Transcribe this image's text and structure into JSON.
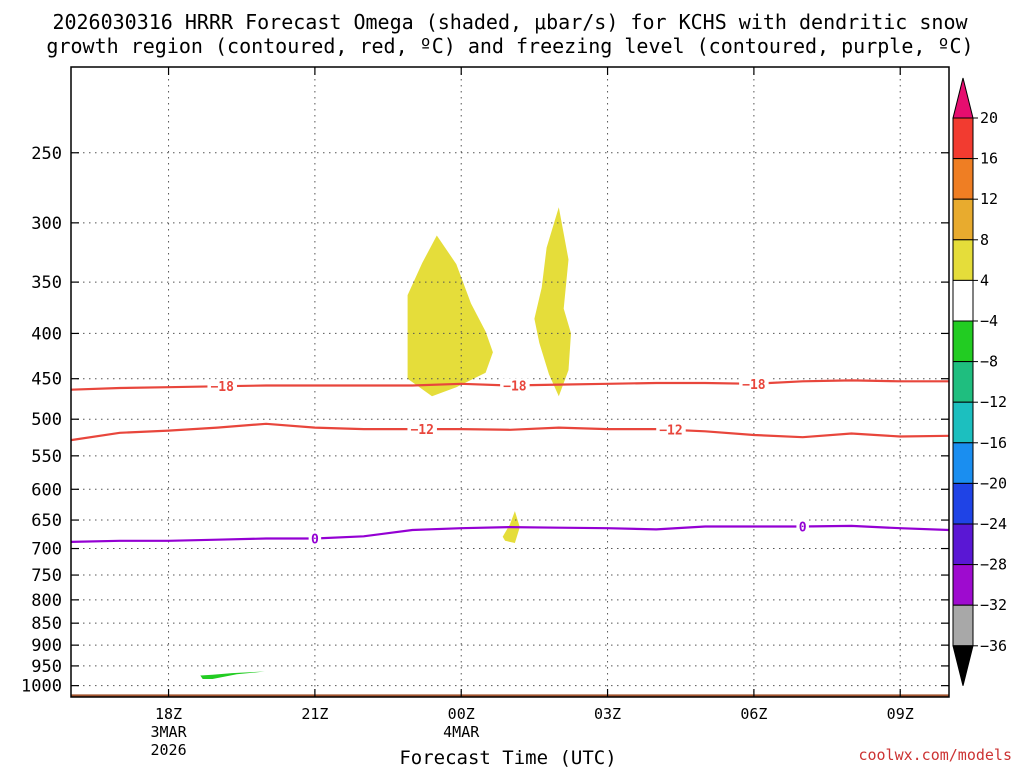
{
  "title": {
    "line1": "2026030316 HRRR Forecast Omega (shaded, μbar/s) for KCHS with dendritic snow",
    "line2": "growth region (contoured, red, ºC) and freezing level (contoured, purple, ºC)"
  },
  "credit": "coolwx.com/models",
  "chart_data": {
    "type": "time-height contour",
    "xlabel": "Forecast Time (UTC)",
    "x_unit": "hours since 2026-03-03 16Z",
    "x_range": [
      0,
      18
    ],
    "y_scale": "log-pressure (reversed)",
    "y_range_hPa": [
      1030,
      200
    ],
    "y_ticks": [
      250,
      300,
      350,
      400,
      450,
      500,
      550,
      600,
      650,
      700,
      750,
      800,
      850,
      900,
      950,
      1000
    ],
    "x_ticks": [
      {
        "hour": 2,
        "lines": [
          "18Z",
          "3MAR",
          "2026"
        ]
      },
      {
        "hour": 5,
        "lines": [
          "21Z"
        ]
      },
      {
        "hour": 8,
        "lines": [
          "00Z",
          "4MAR"
        ]
      },
      {
        "hour": 11,
        "lines": [
          "03Z"
        ]
      },
      {
        "hour": 14,
        "lines": [
          "06Z"
        ]
      },
      {
        "hour": 17,
        "lines": [
          "09Z"
        ]
      }
    ],
    "ground_level_hPa": 1023,
    "contour_lines": [
      {
        "field": "temperature",
        "value": -18,
        "label": "−18",
        "color": "#e8463c",
        "points": [
          [
            0,
            463
          ],
          [
            1,
            461
          ],
          [
            2,
            460
          ],
          [
            3,
            459
          ],
          [
            4,
            458
          ],
          [
            5,
            458
          ],
          [
            6,
            458
          ],
          [
            7,
            458
          ],
          [
            8,
            456
          ],
          [
            9,
            458
          ],
          [
            10,
            457
          ],
          [
            11,
            456
          ],
          [
            12,
            455
          ],
          [
            13,
            455
          ],
          [
            14,
            456
          ],
          [
            15,
            453
          ],
          [
            16,
            452
          ],
          [
            17,
            453
          ],
          [
            18,
            453
          ]
        ],
        "label_hours": [
          3.1,
          9.1,
          14.0
        ]
      },
      {
        "field": "temperature",
        "value": -12,
        "label": "−12",
        "color": "#e8463c",
        "points": [
          [
            0,
            528
          ],
          [
            1,
            518
          ],
          [
            2,
            515
          ],
          [
            3,
            511
          ],
          [
            4,
            506
          ],
          [
            5,
            511
          ],
          [
            6,
            513
          ],
          [
            7,
            513
          ],
          [
            8,
            513
          ],
          [
            9,
            514
          ],
          [
            10,
            511
          ],
          [
            11,
            513
          ],
          [
            12,
            513
          ],
          [
            13,
            516
          ],
          [
            14,
            521
          ],
          [
            15,
            524
          ],
          [
            16,
            519
          ],
          [
            17,
            523
          ],
          [
            18,
            522
          ]
        ],
        "label_hours": [
          7.2,
          12.3
        ]
      },
      {
        "field": "temperature",
        "value": 0,
        "label": "0",
        "color": "#9400d3",
        "points": [
          [
            0,
            688
          ],
          [
            1,
            686
          ],
          [
            2,
            686
          ],
          [
            3,
            684
          ],
          [
            4,
            682
          ],
          [
            5,
            682
          ],
          [
            6,
            678
          ],
          [
            7,
            667
          ],
          [
            8,
            664
          ],
          [
            9,
            662
          ],
          [
            10,
            663
          ],
          [
            11,
            664
          ],
          [
            12,
            666
          ],
          [
            13,
            661
          ],
          [
            14,
            661
          ],
          [
            15,
            661
          ],
          [
            16,
            660
          ],
          [
            17,
            664
          ],
          [
            18,
            667
          ]
        ],
        "label_hours": [
          5.0,
          15.0
        ]
      }
    ],
    "shaded_regions": [
      {
        "color": "#e5dd3a",
        "range": "4 to 8",
        "points": [
          [
            6.9,
            362
          ],
          [
            7.2,
            333
          ],
          [
            7.5,
            310
          ],
          [
            7.9,
            334
          ],
          [
            8.2,
            370
          ],
          [
            8.5,
            398
          ],
          [
            8.65,
            420
          ],
          [
            8.5,
            443
          ],
          [
            7.9,
            460
          ],
          [
            7.4,
            471
          ],
          [
            6.9,
            450
          ]
        ]
      },
      {
        "color": "#e5dd3a",
        "range": "4 to 8",
        "points": [
          [
            9.75,
            320
          ],
          [
            10.0,
            288
          ],
          [
            10.2,
            330
          ],
          [
            10.1,
            375
          ],
          [
            10.25,
            400
          ],
          [
            10.2,
            440
          ],
          [
            10.0,
            471
          ],
          [
            9.8,
            445
          ],
          [
            9.6,
            410
          ],
          [
            9.5,
            385
          ],
          [
            9.65,
            355
          ]
        ]
      },
      {
        "color": "#e5dd3a",
        "range": "4 to 8",
        "points": [
          [
            8.85,
            679
          ],
          [
            9.0,
            657
          ],
          [
            9.1,
            635
          ],
          [
            9.2,
            662
          ],
          [
            9.1,
            690
          ],
          [
            8.9,
            686
          ]
        ]
      },
      {
        "color": "#22cc22",
        "range": "-8 to -4",
        "points": [
          [
            2.65,
            974
          ],
          [
            2.9,
            972
          ],
          [
            3.3,
            968
          ],
          [
            3.97,
            964
          ],
          [
            3.4,
            971
          ],
          [
            2.9,
            983
          ],
          [
            2.7,
            983
          ]
        ]
      }
    ],
    "colorbar": {
      "labels": [
        "20",
        "16",
        "12",
        "8",
        "4",
        "−4",
        "−8",
        "−12",
        "−16",
        "−20",
        "−24",
        "−28",
        "−32",
        "−36"
      ],
      "top_triangle_color": "#e60d6f",
      "bottom_triangle_color": "#000000",
      "bands": [
        "#f23b30",
        "#ef7e23",
        "#e8ab2e",
        "#e5dd3a",
        "#ffffff",
        "#22cc22",
        "#1fbe7f",
        "#1cbfbf",
        "#1a8ef0",
        "#1f43e6",
        "#5a17d4",
        "#9e0bcf",
        "#a8a8a8"
      ]
    }
  }
}
